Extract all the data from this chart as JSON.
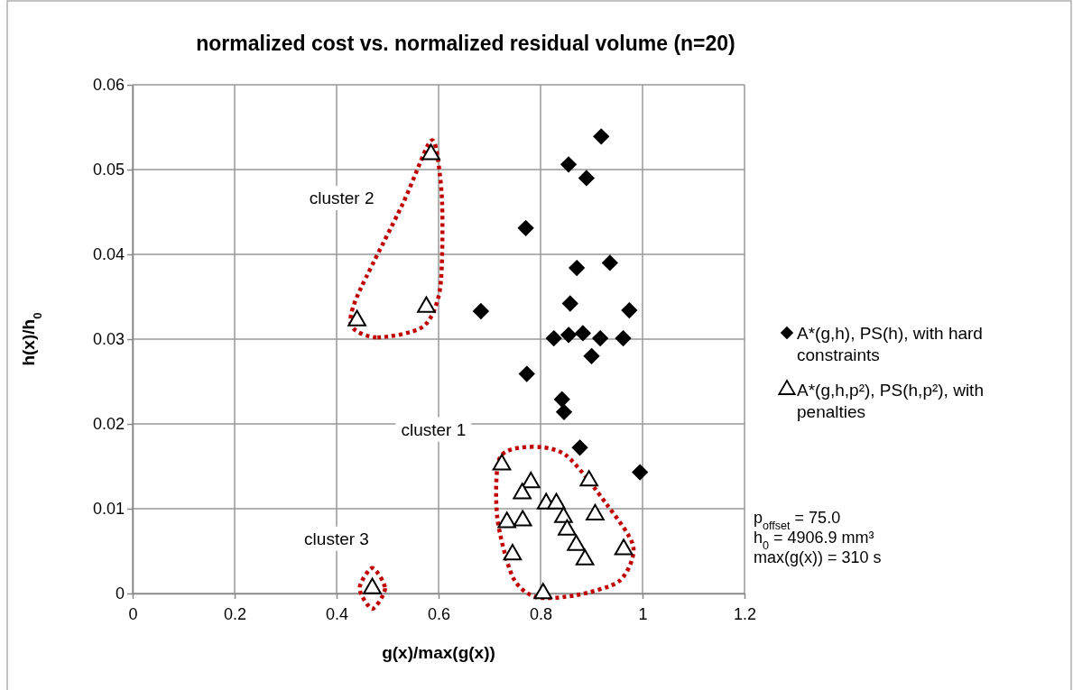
{
  "chart_data": {
    "type": "scatter",
    "title": "normalized cost vs. normalized residual volume (n=20)",
    "xlabel": "g(x)/max(g(x))",
    "ylabel": "h(x)/h$_{0}$",
    "xlim": [
      0,
      1.2
    ],
    "xticks": [
      0,
      0.2,
      0.4,
      0.6,
      0.8,
      1,
      1.2
    ],
    "ylim": [
      0,
      0.06
    ],
    "yticks": [
      0,
      0.01,
      0.02,
      0.03,
      0.04,
      0.05,
      0.06
    ],
    "grid": true,
    "legend": "right",
    "series": [
      {
        "name": "A*(g,h), PS(h), with hard constraints",
        "color": "#000000",
        "marker": "diamond",
        "x": [
          0.919,
          0.855,
          0.89,
          0.771,
          0.871,
          0.936,
          0.858,
          0.974,
          0.683,
          0.826,
          0.855,
          0.883,
          0.917,
          0.962,
          0.773,
          0.9,
          0.842,
          0.846,
          0.877,
          0.995
        ],
        "values": [
          0.0539,
          0.0506,
          0.049,
          0.0431,
          0.0384,
          0.039,
          0.0342,
          0.0334,
          0.0333,
          0.0301,
          0.0305,
          0.0307,
          0.0301,
          0.0301,
          0.0259,
          0.028,
          0.0229,
          0.0214,
          0.0172,
          0.0143
        ]
      },
      {
        "name": "A*(g,h,p²), PS(h,p²), with penalties",
        "color": "#000000",
        "marker": "triangle",
        "x": [
          0.585,
          0.576,
          0.44,
          0.724,
          0.781,
          0.764,
          0.895,
          0.811,
          0.831,
          0.845,
          0.734,
          0.765,
          0.907,
          0.852,
          0.87,
          0.963,
          0.745,
          0.887,
          0.805,
          0.47
        ],
        "values": [
          0.0518,
          0.0338,
          0.0322,
          0.0152,
          0.0131,
          0.0118,
          0.0133,
          0.0106,
          0.0106,
          0.009,
          0.0084,
          0.0086,
          0.0093,
          0.0075,
          0.0057,
          0.0052,
          0.0046,
          0.004,
          0.0,
          0.0006
        ]
      }
    ],
    "annotations": [
      "cluster 2",
      "cluster 1",
      "cluster 3",
      "p$_{offset}$ = 75.0",
      "h$_{0}$ = 4906.9 mm³",
      "max(g(x)) = 310 s"
    ]
  }
}
